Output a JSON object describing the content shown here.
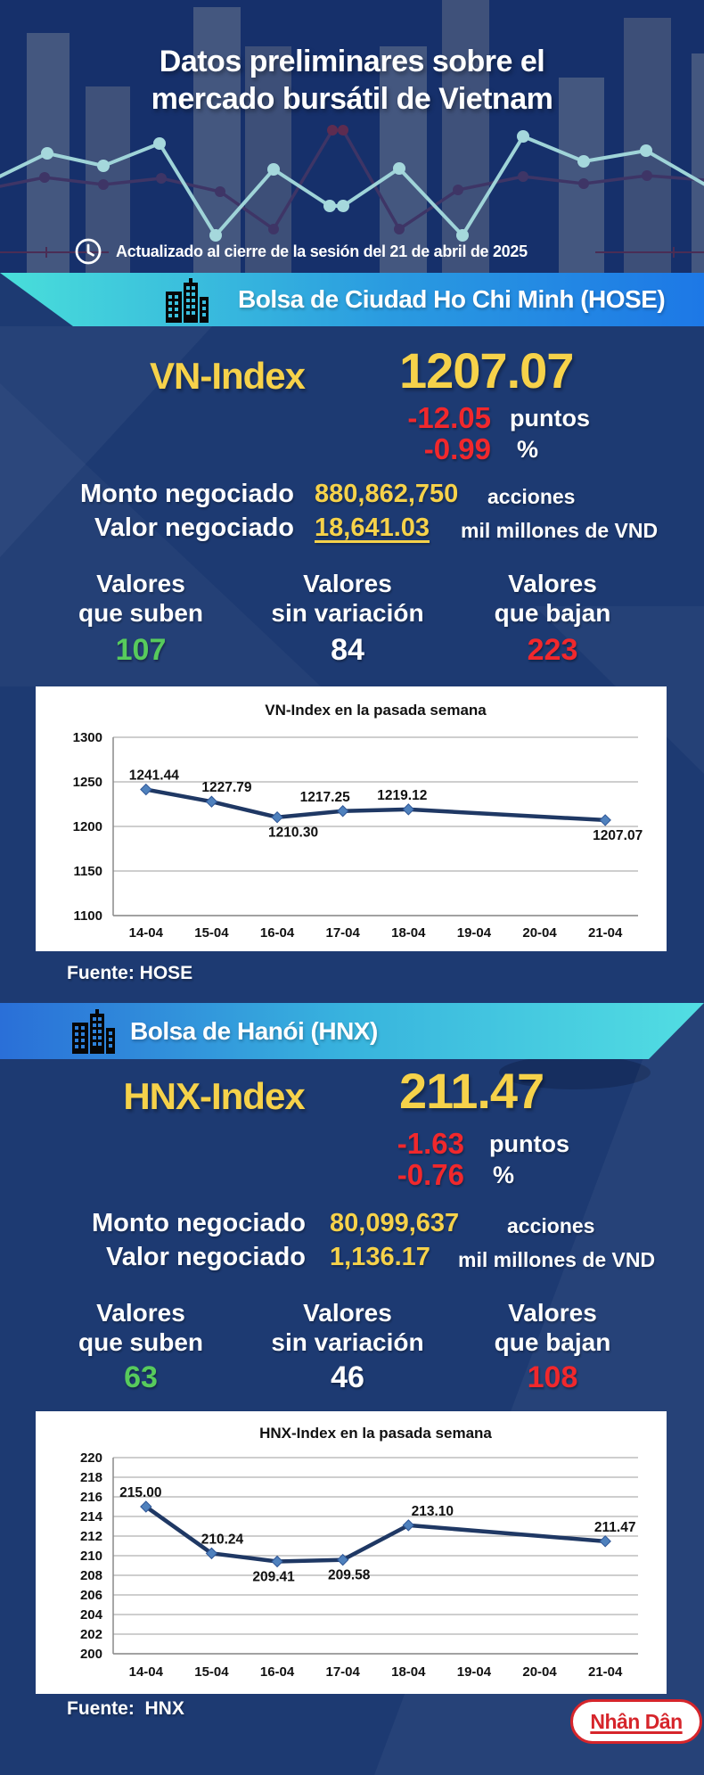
{
  "header": {
    "title_line1": "Datos preliminares sobre el",
    "title_line2": "mercado bursátil de Vietnam",
    "updated": "Actualizado al cierre de la sesión del 21 de abril de 2025"
  },
  "colors": {
    "accent_yellow": "#f6d24a",
    "negative_red": "#f1282c",
    "positive_green": "#57cb5c",
    "background_navy": "#1d3a72",
    "banner_cyan": "#4be0dc",
    "banner_blue": "#1d78e6",
    "chart_line": "#1f3864",
    "chart_marker": "#4f81bd",
    "logo_red": "#d6252b"
  },
  "hose": {
    "banner": "Bolsa de Ciudad Ho Chi Minh (HOSE)",
    "index_label": "VN-Index",
    "index_value": "1207.07",
    "change_points": "-12.05",
    "change_points_unit": "puntos",
    "change_pct": "-0.99",
    "change_pct_unit": "%",
    "volume_label": "Monto negociado",
    "volume_value": "880,862,750",
    "volume_unit": "acciones",
    "value_label": "Valor negociado",
    "value_value": "18,641.03",
    "value_unit": "mil millones de VND",
    "advancers": {
      "label1": "Valores",
      "label2": "que suben",
      "value": "107"
    },
    "unchanged": {
      "label1": "Valores",
      "label2": "sin variación",
      "value": "84"
    },
    "decliners": {
      "label1": "Valores",
      "label2": "que bajan",
      "value": "223"
    },
    "source": "Fuente: HOSE"
  },
  "hnx": {
    "banner": "Bolsa de Hanói (HNX)",
    "index_label": "HNX-Index",
    "index_value": "211.47",
    "change_points": "-1.63",
    "change_points_unit": "puntos",
    "change_pct": "-0.76",
    "change_pct_unit": "%",
    "volume_label": "Monto negociado",
    "volume_value": "80,099,637",
    "volume_unit": "acciones",
    "value_label": "Valor negociado",
    "value_value": "1,136.17",
    "value_unit": "mil millones de VND",
    "advancers": {
      "label1": "Valores",
      "label2": "que suben",
      "value": "63"
    },
    "unchanged": {
      "label1": "Valores",
      "label2": "sin variación",
      "value": "46"
    },
    "decliners": {
      "label1": "Valores",
      "label2": "que bajan",
      "value": "108"
    },
    "source": "Fuente:  HNX"
  },
  "footer": {
    "logo": "Nhân Dân"
  },
  "chart_data": [
    {
      "type": "line",
      "title": "VN-Index en la pasada semana",
      "categories": [
        "14-04",
        "15-04",
        "16-04",
        "17-04",
        "18-04",
        "19-04",
        "20-04",
        "21-04"
      ],
      "x_slots": [
        0,
        1,
        2,
        3,
        4,
        7
      ],
      "values": [
        1241.44,
        1227.79,
        1210.3,
        1217.25,
        1219.12,
        1207.07
      ],
      "labels": [
        "1241.44",
        "1227.79",
        "1210.30",
        "1217.25",
        "1219.12",
        "1207.07"
      ],
      "label_pos": [
        "above",
        "above",
        "below",
        "above",
        "above",
        "below"
      ],
      "label_dx": [
        9,
        17,
        18,
        -20,
        -7,
        14
      ],
      "ylim": [
        1100,
        1300
      ],
      "yticks": [
        1300,
        1250,
        1200,
        1150,
        1100
      ],
      "grid": true,
      "legend": false
    },
    {
      "type": "line",
      "title": "HNX-Index en la pasada semana",
      "categories": [
        "14-04",
        "15-04",
        "16-04",
        "17-04",
        "18-04",
        "19-04",
        "20-04",
        "21-04"
      ],
      "x_slots": [
        0,
        1,
        2,
        3,
        4,
        7
      ],
      "values": [
        215.0,
        210.24,
        209.41,
        209.58,
        213.1,
        211.47
      ],
      "labels": [
        "215.00",
        "210.24",
        "209.41",
        "209.58",
        "213.10",
        "211.47"
      ],
      "label_pos": [
        "above",
        "above",
        "below",
        "below",
        "above",
        "above"
      ],
      "label_dx": [
        -6,
        12,
        -4,
        7,
        27,
        11
      ],
      "ylim": [
        200,
        220
      ],
      "yticks": [
        220,
        218,
        216,
        214,
        212,
        210,
        208,
        206,
        204,
        202,
        200
      ],
      "grid": true,
      "legend": false
    }
  ]
}
